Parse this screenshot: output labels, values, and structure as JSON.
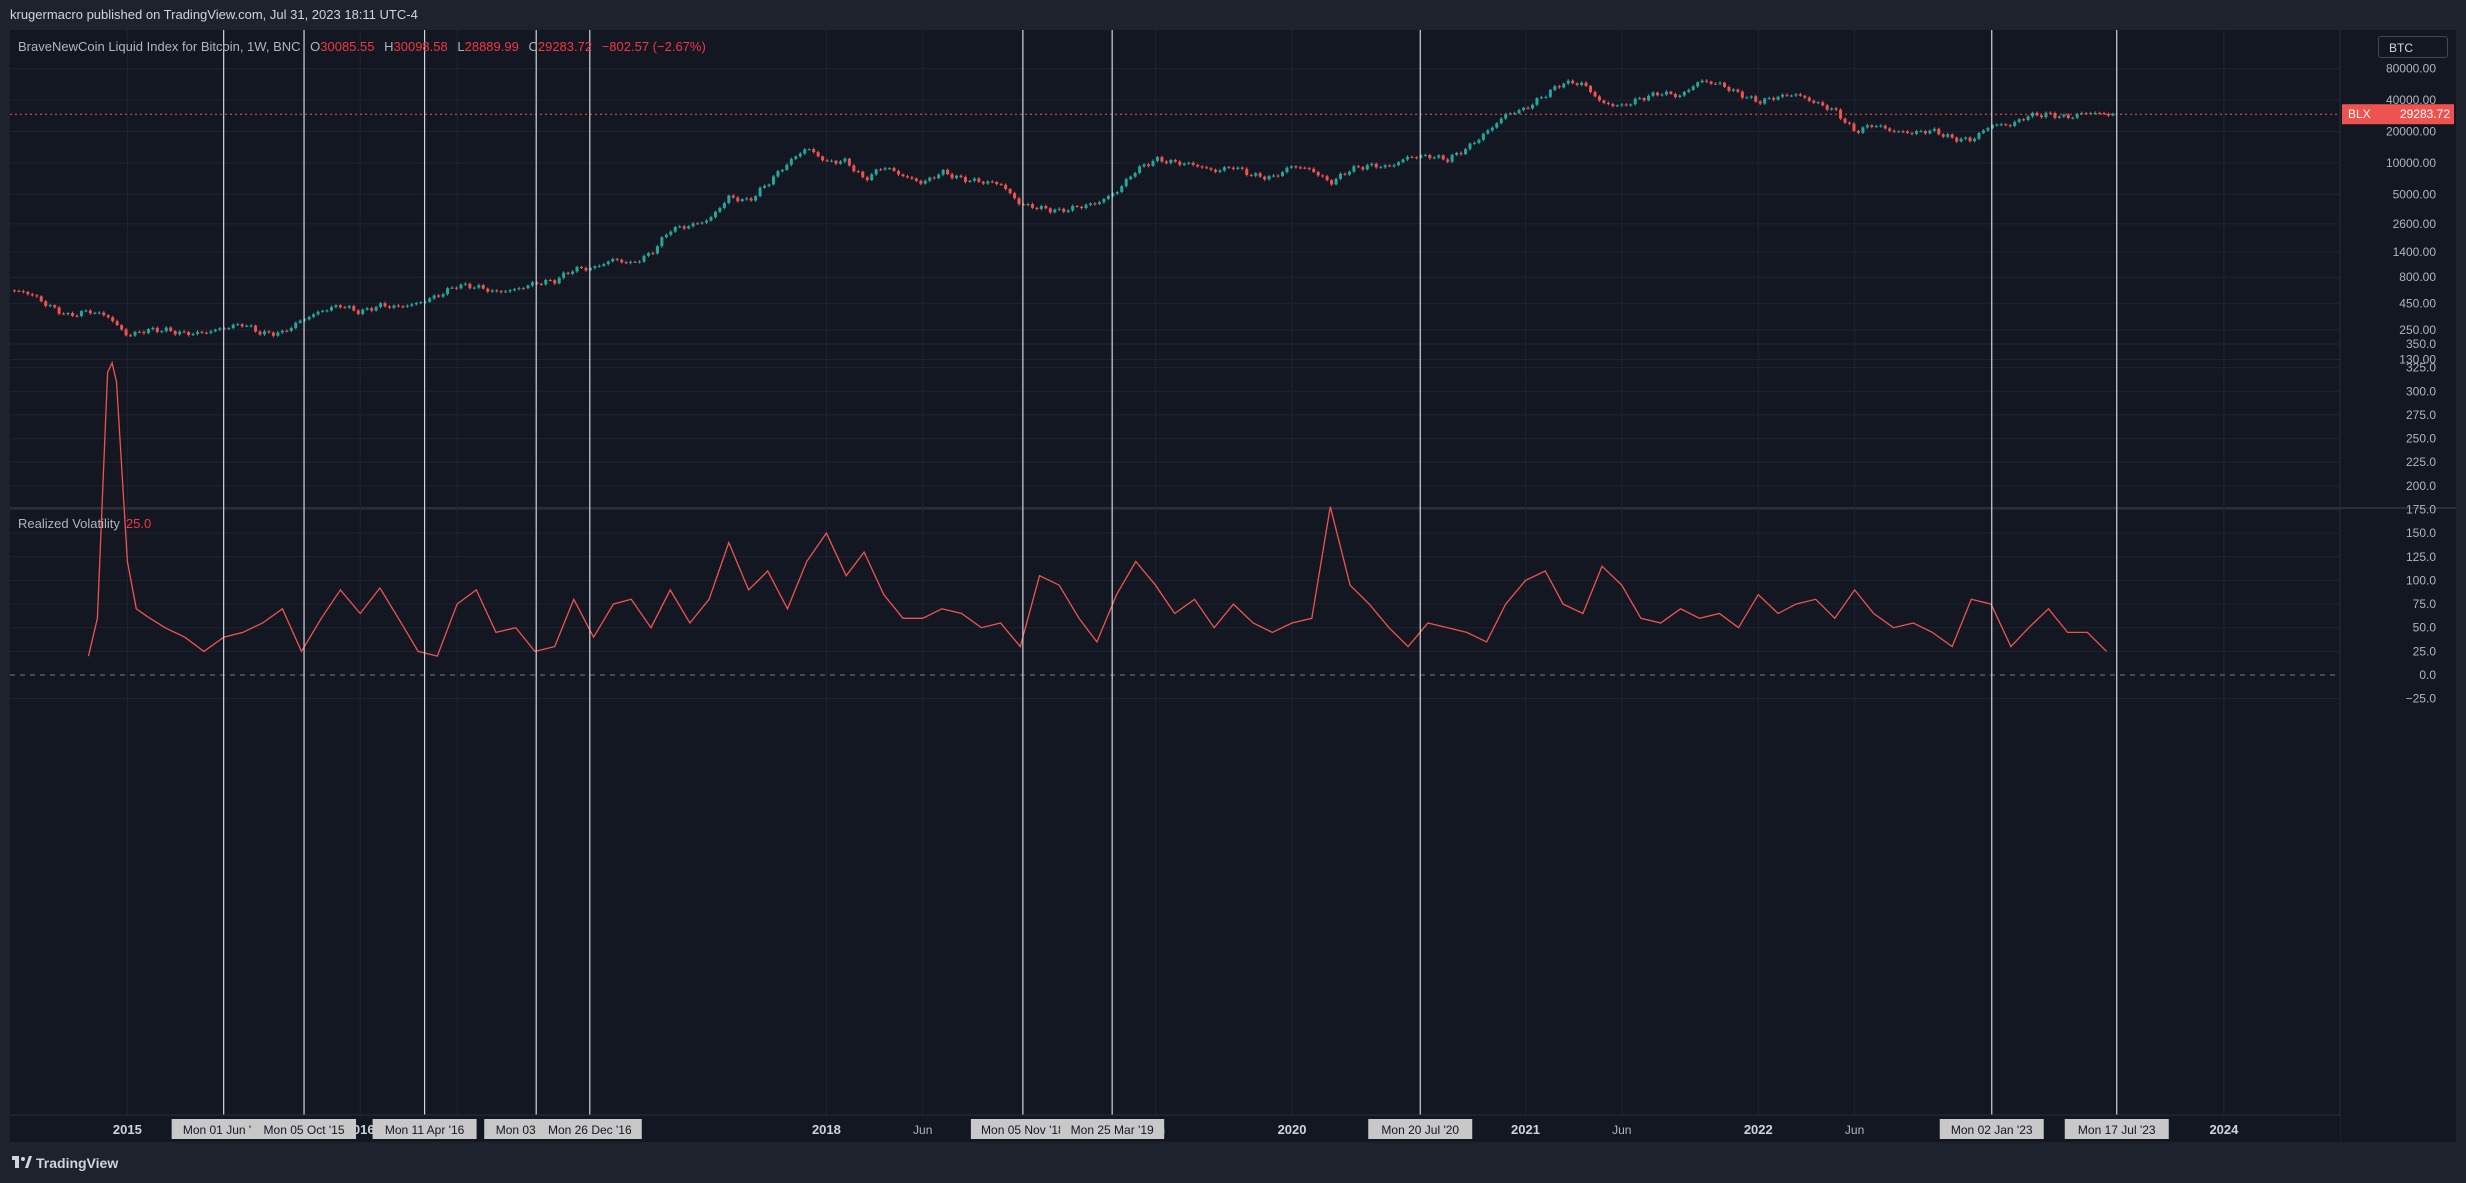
{
  "header": {
    "text": "krugermacro published on TradingView.com, Jul 31, 2023 18:11 UTC-4"
  },
  "legend": {
    "symbol": "BraveNewCoin Liquid Index for Bitcoin, 1W, BNC",
    "open_label": "O",
    "open": "30085.55",
    "high_label": "H",
    "high": "30098.58",
    "low_label": "L",
    "low": "28889.99",
    "close_label": "C",
    "close": "29283.72",
    "change": "−802.57 (−2.67%)"
  },
  "badge": {
    "label": "BTC"
  },
  "price_tag": {
    "symbol": "BLX",
    "value": "29283.72"
  },
  "volatility_legend": {
    "name": "Realized Volatility",
    "value": "25.0"
  },
  "footer": {
    "brand": "TradingView"
  },
  "colors": {
    "up": "#26a69a",
    "down": "#ef5350",
    "volatility_line": "#ef5350",
    "background": "#131722",
    "grid": "#1f2330"
  },
  "chart_data": [
    {
      "type": "candlestick",
      "scale": "log",
      "title": "BraveNewCoin Liquid Index for Bitcoin, 1W, BNC",
      "yticks": [
        130,
        250,
        450,
        800,
        1400,
        2600,
        5000,
        10000,
        20000,
        40000,
        80000
      ],
      "ytick_labels": [
        "130.00",
        "250.00",
        "450.00",
        "800.00",
        "1400.00",
        "2600.00",
        "5000.00",
        "10000.00",
        "20000.00",
        "40000.00",
        "80000.00"
      ],
      "series": [
        {
          "x": [
            "2014-07-01",
            "2014-08-01",
            "2014-09-01",
            "2014-10-01",
            "2014-11-01",
            "2014-12-01",
            "2015-01-01",
            "2015-02-01",
            "2015-03-01",
            "2015-04-01",
            "2015-05-01",
            "2015-06-01",
            "2015-07-01",
            "2015-08-01",
            "2015-09-01",
            "2015-10-01",
            "2015-11-01",
            "2015-12-01",
            "2016-01-01",
            "2016-02-01",
            "2016-03-01",
            "2016-04-01",
            "2016-05-01",
            "2016-06-01",
            "2016-07-01",
            "2016-08-01",
            "2016-09-01",
            "2016-10-01",
            "2016-11-01",
            "2016-12-01",
            "2017-01-01",
            "2017-02-01",
            "2017-03-01",
            "2017-04-01",
            "2017-05-01",
            "2017-06-01",
            "2017-07-01",
            "2017-08-01",
            "2017-09-01",
            "2017-10-01",
            "2017-11-01",
            "2017-12-01",
            "2018-01-01",
            "2018-02-01",
            "2018-03-01",
            "2018-04-01",
            "2018-05-01",
            "2018-06-01",
            "2018-07-01",
            "2018-08-01",
            "2018-09-01",
            "2018-10-01",
            "2018-11-01",
            "2018-12-01",
            "2019-01-01",
            "2019-02-01",
            "2019-03-01",
            "2019-04-01",
            "2019-05-01",
            "2019-06-01",
            "2019-07-01",
            "2019-08-01",
            "2019-09-01",
            "2019-10-01",
            "2019-11-01",
            "2019-12-01",
            "2020-01-01",
            "2020-02-01",
            "2020-03-01",
            "2020-04-01",
            "2020-05-01",
            "2020-06-01",
            "2020-07-01",
            "2020-08-01",
            "2020-09-01",
            "2020-10-01",
            "2020-11-01",
            "2020-12-01",
            "2021-01-01",
            "2021-02-01",
            "2021-03-01",
            "2021-04-01",
            "2021-05-01",
            "2021-06-01",
            "2021-07-01",
            "2021-08-01",
            "2021-09-01",
            "2021-10-01",
            "2021-11-01",
            "2021-12-01",
            "2022-01-01",
            "2022-02-01",
            "2022-03-01",
            "2022-04-01",
            "2022-05-01",
            "2022-06-01",
            "2022-07-01",
            "2022-08-01",
            "2022-09-01",
            "2022-10-01",
            "2022-11-01",
            "2022-12-01",
            "2023-01-01",
            "2023-02-01",
            "2023-03-01",
            "2023-04-01",
            "2023-05-01",
            "2023-06-01",
            "2023-07-01"
          ],
          "close": [
            600,
            560,
            420,
            340,
            380,
            340,
            220,
            250,
            250,
            230,
            235,
            260,
            285,
            230,
            235,
            310,
            380,
            430,
            370,
            430,
            415,
            450,
            530,
            670,
            650,
            575,
            610,
            700,
            740,
            960,
            980,
            1190,
            1080,
            1350,
            2300,
            2500,
            2850,
            4700,
            4300,
            6400,
            9900,
            14000,
            10200,
            10400,
            6900,
            9250,
            7500,
            6400,
            8200,
            7000,
            6600,
            6300,
            4000,
            3700,
            3450,
            3800,
            4100,
            5300,
            8500,
            10800,
            10100,
            9600,
            8300,
            9200,
            7550,
            7200,
            9350,
            8550,
            6400,
            8650,
            9450,
            9150,
            11350,
            11650,
            10800,
            13800,
            19700,
            29000,
            33100,
            45200,
            58800,
            57700,
            37300,
            35000,
            41500,
            47100,
            43800,
            61300,
            57000,
            46200,
            38500,
            43200,
            45500,
            37700,
            31800,
            19950,
            23300,
            20050,
            19400,
            20500,
            17150,
            16550,
            23100,
            23150,
            28500,
            29250,
            27200,
            30500,
            29283.72
          ]
        }
      ]
    },
    {
      "type": "line",
      "title": "Realized Volatility",
      "ylim": [
        -25,
        360
      ],
      "yticks": [
        -25,
        0,
        25,
        50,
        75,
        100,
        125,
        150,
        175,
        200,
        225,
        250,
        275,
        300,
        325,
        350
      ],
      "ytick_labels": [
        "−25.0",
        "0.0",
        "25.0",
        "50.0",
        "75.0",
        "100.0",
        "125.0",
        "150.0",
        "175.0",
        "200.0",
        "225.0",
        "250.0",
        "275.0",
        "300.0",
        "325.0",
        "350.0"
      ],
      "zero_line": true,
      "series": [
        {
          "name": "Realized Volatility",
          "x": [
            "2014-11-01",
            "2014-11-15",
            "2014-12-01",
            "2014-12-08",
            "2014-12-15",
            "2015-01-01",
            "2015-01-15",
            "2015-02-01",
            "2015-03-01",
            "2015-04-01",
            "2015-05-01",
            "2015-06-01",
            "2015-07-01",
            "2015-08-01",
            "2015-09-01",
            "2015-10-01",
            "2015-11-01",
            "2015-12-01",
            "2016-01-01",
            "2016-02-01",
            "2016-03-01",
            "2016-04-01",
            "2016-05-01",
            "2016-06-01",
            "2016-07-01",
            "2016-08-01",
            "2016-09-01",
            "2016-10-01",
            "2016-11-01",
            "2016-12-01",
            "2017-01-01",
            "2017-02-01",
            "2017-03-01",
            "2017-04-01",
            "2017-05-01",
            "2017-06-01",
            "2017-07-01",
            "2017-08-01",
            "2017-09-01",
            "2017-10-01",
            "2017-11-01",
            "2017-12-01",
            "2018-01-01",
            "2018-02-01",
            "2018-03-01",
            "2018-04-01",
            "2018-05-01",
            "2018-06-01",
            "2018-07-01",
            "2018-08-01",
            "2018-09-01",
            "2018-10-01",
            "2018-11-01",
            "2018-12-01",
            "2019-01-01",
            "2019-02-01",
            "2019-03-01",
            "2019-04-01",
            "2019-05-01",
            "2019-06-01",
            "2019-07-01",
            "2019-08-01",
            "2019-09-01",
            "2019-10-01",
            "2019-11-01",
            "2019-12-01",
            "2020-01-01",
            "2020-02-01",
            "2020-03-01",
            "2020-04-01",
            "2020-05-01",
            "2020-06-01",
            "2020-07-01",
            "2020-08-01",
            "2020-09-01",
            "2020-10-01",
            "2020-11-01",
            "2020-12-01",
            "2021-01-01",
            "2021-02-01",
            "2021-03-01",
            "2021-04-01",
            "2021-05-01",
            "2021-06-01",
            "2021-07-01",
            "2021-08-01",
            "2021-09-01",
            "2021-10-01",
            "2021-11-01",
            "2021-12-01",
            "2022-01-01",
            "2022-02-01",
            "2022-03-01",
            "2022-04-01",
            "2022-05-01",
            "2022-06-01",
            "2022-07-01",
            "2022-08-01",
            "2022-09-01",
            "2022-10-01",
            "2022-11-01",
            "2022-12-01",
            "2023-01-01",
            "2023-02-01",
            "2023-03-01",
            "2023-04-01",
            "2023-05-01",
            "2023-06-01",
            "2023-07-01"
          ],
          "values": [
            20,
            60,
            320,
            330,
            310,
            120,
            70,
            62,
            50,
            40,
            25,
            40,
            45,
            55,
            70,
            25,
            60,
            90,
            65,
            92,
            60,
            25,
            20,
            75,
            90,
            45,
            50,
            25,
            30,
            80,
            40,
            75,
            80,
            50,
            90,
            55,
            80,
            140,
            90,
            110,
            70,
            120,
            150,
            105,
            130,
            85,
            60,
            60,
            70,
            65,
            50,
            55,
            30,
            105,
            95,
            60,
            35,
            85,
            120,
            95,
            65,
            80,
            50,
            75,
            55,
            45,
            55,
            60,
            178,
            95,
            75,
            50,
            30,
            55,
            50,
            45,
            35,
            75,
            100,
            110,
            75,
            65,
            115,
            95,
            60,
            55,
            70,
            60,
            65,
            50,
            85,
            65,
            75,
            80,
            60,
            90,
            65,
            50,
            55,
            45,
            30,
            80,
            75,
            30,
            50,
            70,
            45,
            45,
            25
          ]
        }
      ]
    }
  ],
  "xaxis": {
    "labels": [
      {
        "date": "2015-01-01",
        "text": "2015"
      },
      {
        "date": "2016-01-01",
        "text": "2016"
      },
      {
        "date": "2016-06-01",
        "text": "Jun"
      },
      {
        "date": "2018-01-01",
        "text": "2018"
      },
      {
        "date": "2018-06-01",
        "text": "Jun"
      },
      {
        "date": "2019-06-01",
        "text": "Jun"
      },
      {
        "date": "2020-01-01",
        "text": "2020"
      },
      {
        "date": "2021-01-01",
        "text": "2021"
      },
      {
        "date": "2021-06-01",
        "text": "Jun"
      },
      {
        "date": "2022-01-01",
        "text": "2022"
      },
      {
        "date": "2022-06-01",
        "text": "Jun"
      },
      {
        "date": "2024-01-01",
        "text": "2024"
      }
    ],
    "markers": [
      {
        "date": "2015-06-01",
        "text": "Mon 01 Jun '15"
      },
      {
        "date": "2015-10-05",
        "text": "Mon 05 Oct '15"
      },
      {
        "date": "2016-04-11",
        "text": "Mon 11 Apr '16"
      },
      {
        "date": "2016-10-03",
        "text": "Mon 03 Oct '16"
      },
      {
        "date": "2016-12-26",
        "text": "Mon 26 Dec '16"
      },
      {
        "date": "2018-11-05",
        "text": "Mon 05 Nov '18"
      },
      {
        "date": "2019-03-25",
        "text": "Mon 25 Mar '19"
      },
      {
        "date": "2020-07-20",
        "text": "Mon 20 Jul '20"
      },
      {
        "date": "2023-01-02",
        "text": "Mon 02 Jan '23"
      },
      {
        "date": "2023-07-17",
        "text": "Mon 17 Jul '23"
      }
    ]
  }
}
